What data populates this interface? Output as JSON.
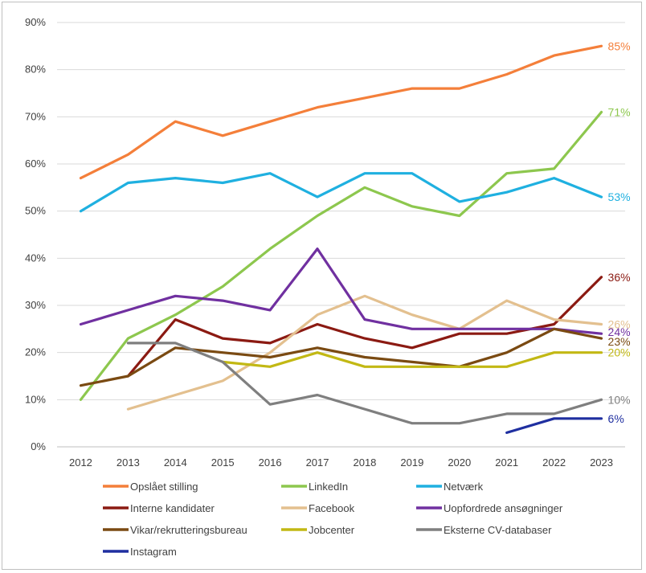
{
  "chart_data": {
    "type": "line",
    "title": "",
    "xlabel": "",
    "ylabel": "",
    "x": [
      "2012",
      "2013",
      "2014",
      "2015",
      "2016",
      "2017",
      "2018",
      "2019",
      "2020",
      "2021",
      "2022",
      "2023"
    ],
    "ylim": [
      0,
      90
    ],
    "yticks": [
      "0%",
      "10%",
      "20%",
      "30%",
      "40%",
      "50%",
      "60%",
      "70%",
      "80%",
      "90%"
    ],
    "grid": true,
    "legend_position": "bottom",
    "series": [
      {
        "name": "Opslået stilling",
        "color": "#f47f3a",
        "values": [
          57,
          62,
          69,
          66,
          69,
          72,
          74,
          76,
          76,
          79,
          83,
          85
        ],
        "end_label": "85%"
      },
      {
        "name": "LinkedIn",
        "color": "#8dc74e",
        "values": [
          10,
          23,
          28,
          34,
          42,
          49,
          55,
          51,
          49,
          58,
          59,
          71
        ],
        "end_label": "71%"
      },
      {
        "name": "Netværk",
        "color": "#1fb0e0",
        "values": [
          50,
          56,
          57,
          56,
          58,
          53,
          58,
          58,
          52,
          54,
          57,
          53
        ],
        "end_label": "53%"
      },
      {
        "name": "Interne kandidater",
        "color": "#8b1a12",
        "values": [
          null,
          15,
          27,
          23,
          22,
          26,
          23,
          21,
          24,
          24,
          26,
          36
        ],
        "end_label": "36%"
      },
      {
        "name": "Facebook",
        "color": "#e3c08f",
        "values": [
          null,
          8,
          11,
          14,
          20,
          28,
          32,
          28,
          25,
          31,
          27,
          26
        ],
        "end_label": "26%"
      },
      {
        "name": "Uopfordrede ansøgninger",
        "color": "#7030a0",
        "values": [
          26,
          29,
          32,
          31,
          29,
          42,
          27,
          25,
          25,
          25,
          25,
          24
        ],
        "end_label": "24%"
      },
      {
        "name": "Vikar/rekrutteringsbureau",
        "color": "#7a4a12",
        "values": [
          13,
          15,
          21,
          20,
          19,
          21,
          19,
          18,
          17,
          20,
          25,
          23
        ],
        "end_label": "23%"
      },
      {
        "name": "Jobcenter",
        "color": "#c2b814",
        "values": [
          null,
          null,
          null,
          18,
          17,
          20,
          17,
          17,
          17,
          17,
          20,
          20
        ],
        "end_label": "20%"
      },
      {
        "name": "Eksterne CV-databaser",
        "color": "#7f7f7f",
        "values": [
          null,
          22,
          22,
          18,
          9,
          11,
          8,
          5,
          5,
          7,
          7,
          10
        ],
        "end_label": "10%"
      },
      {
        "name": "Instagram",
        "color": "#1f2fa0",
        "values": [
          null,
          null,
          null,
          null,
          null,
          null,
          null,
          null,
          null,
          3,
          6,
          6
        ],
        "end_label": "6%"
      }
    ]
  }
}
